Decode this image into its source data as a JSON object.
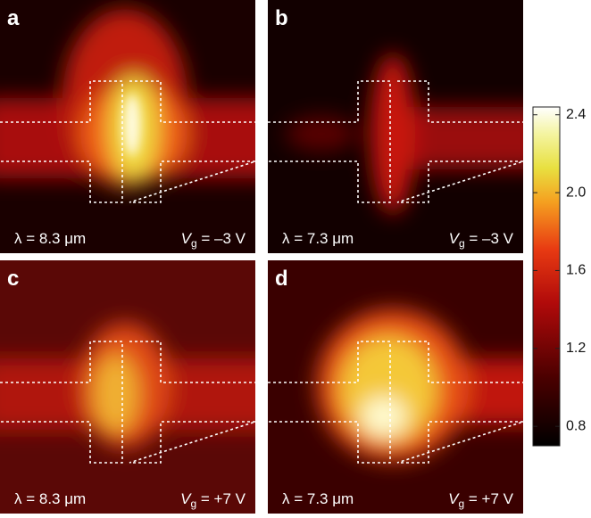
{
  "panels": [
    {
      "label": "a",
      "wavelength": "λ = 8.3 μm",
      "gate": {
        "symbol": "V",
        "subscript": "g",
        "text": " = –3 V"
      }
    },
    {
      "label": "b",
      "wavelength": "λ = 7.3 μm",
      "gate": {
        "symbol": "V",
        "subscript": "g",
        "text": " = –3 V"
      }
    },
    {
      "label": "c",
      "wavelength": "λ = 8.3 μm",
      "gate": {
        "symbol": "V",
        "subscript": "g",
        "text": " = +7 V"
      }
    },
    {
      "label": "d",
      "wavelength": "λ = 7.3 μm",
      "gate": {
        "symbol": "V",
        "subscript": "g",
        "text": " = +7 V"
      }
    }
  ],
  "colorbar": {
    "lim": [
      0.7,
      2.44
    ],
    "ticks": [
      0.8,
      1.2,
      1.6,
      {
        "value": 2,
        "label": "2.0"
      },
      2.4
    ]
  }
}
